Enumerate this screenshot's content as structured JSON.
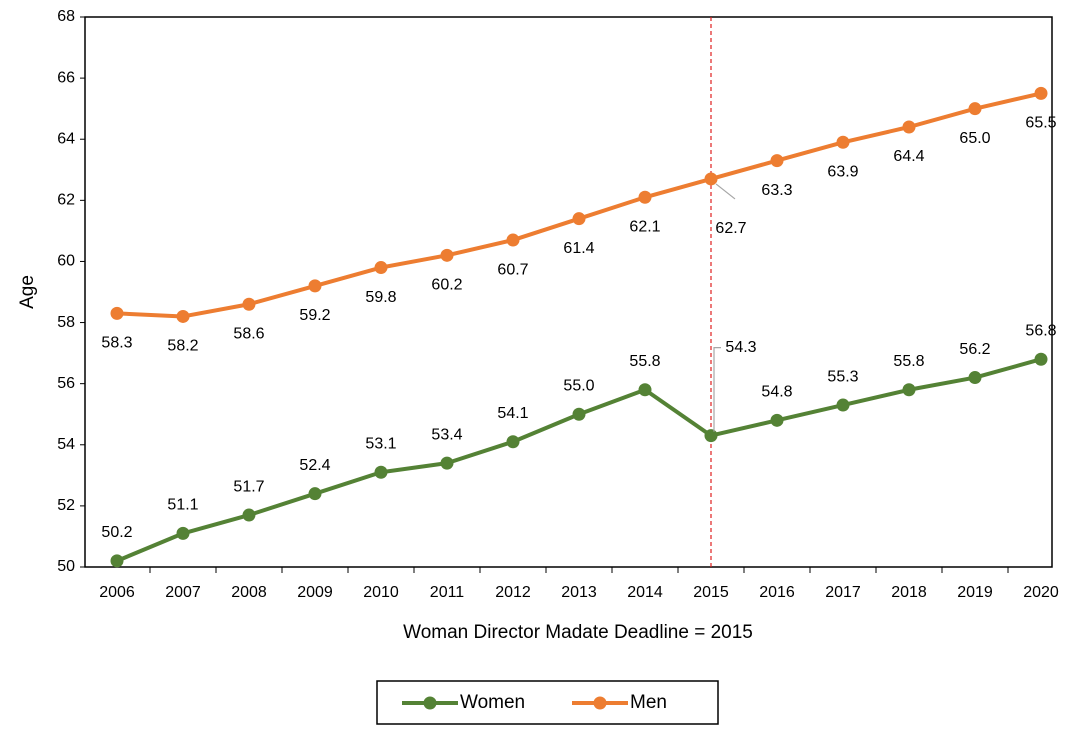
{
  "chart_data": {
    "type": "line",
    "xlabel": "Woman Director Madate Deadline = 2015",
    "ylabel": "Age",
    "categories": [
      "2006",
      "2007",
      "2008",
      "2009",
      "2010",
      "2011",
      "2012",
      "2013",
      "2014",
      "2015",
      "2016",
      "2017",
      "2018",
      "2019",
      "2020"
    ],
    "series": [
      {
        "name": "Women",
        "color": "#548235",
        "values": [
          50.2,
          51.1,
          51.7,
          52.4,
          53.1,
          53.4,
          54.1,
          55.0,
          55.8,
          54.3,
          54.8,
          55.3,
          55.8,
          56.2,
          56.8
        ],
        "value_labels": [
          "50.2",
          "51.1",
          "51.7",
          "52.4",
          "53.1",
          "53.4",
          "54.1",
          "55.0",
          "55.8",
          "54.3",
          "54.8",
          "55.3",
          "55.8",
          "56.2",
          "56.8"
        ]
      },
      {
        "name": "Men",
        "color": "#ed7d31",
        "values": [
          58.3,
          58.2,
          58.6,
          59.2,
          59.8,
          60.2,
          60.7,
          61.4,
          62.1,
          62.7,
          63.3,
          63.9,
          64.4,
          65.0,
          65.5
        ],
        "value_labels": [
          "58.3",
          "58.2",
          "58.6",
          "59.2",
          "59.8",
          "60.2",
          "60.7",
          "61.4",
          "62.1",
          "62.7",
          "63.3",
          "63.9",
          "64.4",
          "65.0",
          "65.5"
        ]
      }
    ],
    "ylim": [
      50,
      68
    ],
    "yticks": [
      50,
      52,
      54,
      56,
      58,
      60,
      62,
      64,
      66,
      68
    ],
    "reference_line": {
      "at": "2015",
      "color": "#e02020"
    },
    "legend": "bottom"
  }
}
